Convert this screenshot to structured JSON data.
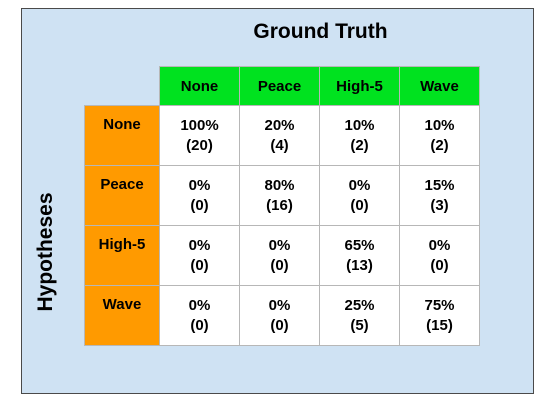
{
  "title": "Ground Truth",
  "y_label": "Hypotheses",
  "columns": [
    "None",
    "Peace",
    "High-5",
    "Wave"
  ],
  "rows": [
    {
      "label": "None",
      "cells": [
        {
          "pct": "100%",
          "count": "(20)"
        },
        {
          "pct": "20%",
          "count": "(4)"
        },
        {
          "pct": "10%",
          "count": "(2)"
        },
        {
          "pct": "10%",
          "count": "(2)"
        }
      ]
    },
    {
      "label": "Peace",
      "cells": [
        {
          "pct": "0%",
          "count": "(0)"
        },
        {
          "pct": "80%",
          "count": "(16)"
        },
        {
          "pct": "0%",
          "count": "(0)"
        },
        {
          "pct": "15%",
          "count": "(3)"
        }
      ]
    },
    {
      "label": "High-5",
      "cells": [
        {
          "pct": "0%",
          "count": "(0)"
        },
        {
          "pct": "0%",
          "count": "(0)"
        },
        {
          "pct": "65%",
          "count": "(13)"
        },
        {
          "pct": "0%",
          "count": "(0)"
        }
      ]
    },
    {
      "label": "Wave",
      "cells": [
        {
          "pct": "0%",
          "count": "(0)"
        },
        {
          "pct": "0%",
          "count": "(0)"
        },
        {
          "pct": "25%",
          "count": "(5)"
        },
        {
          "pct": "75%",
          "count": "(15)"
        }
      ]
    }
  ],
  "colors": {
    "background": "#cfe2f3",
    "column_header": "#00e21f",
    "row_header": "#ff9a00",
    "cell": "#ffffff"
  }
}
